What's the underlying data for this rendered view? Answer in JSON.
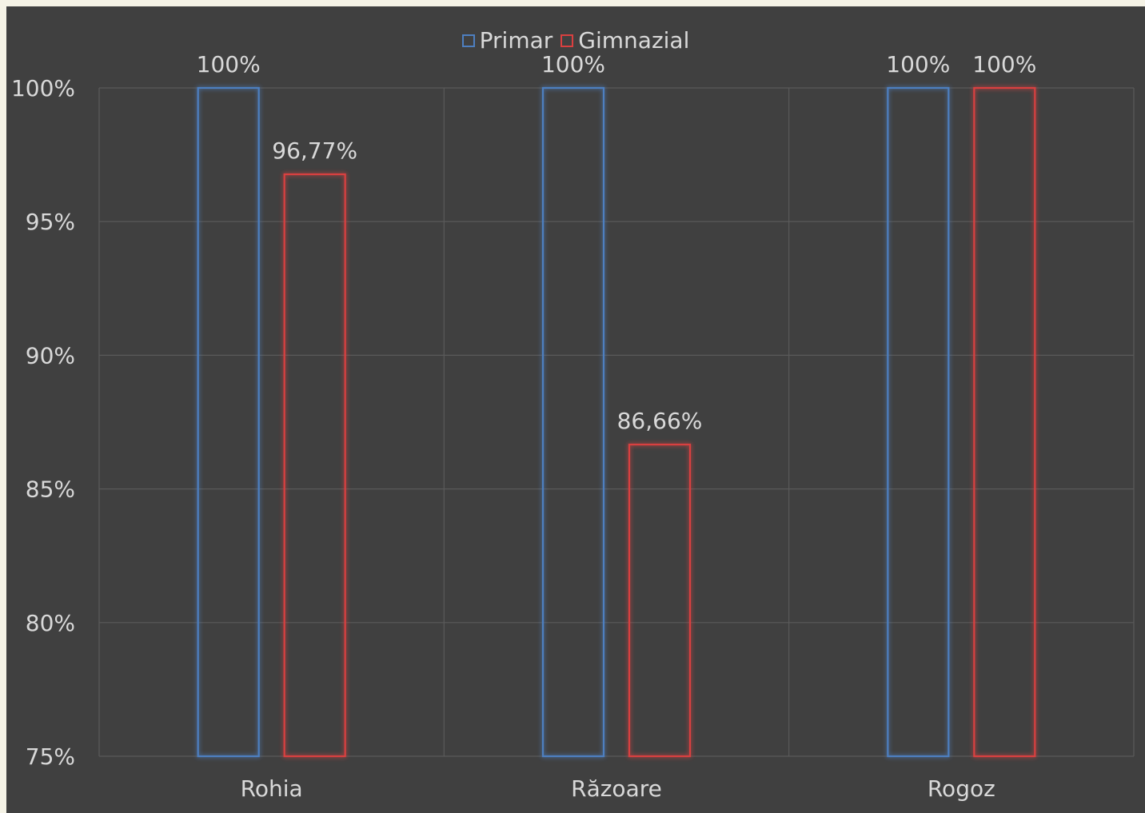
{
  "chart_data": {
    "type": "bar",
    "categories": [
      "Rohia",
      "Răzoare",
      "Rogoz"
    ],
    "series": [
      {
        "name": "Primar",
        "values": [
          100,
          100,
          100
        ],
        "labels": [
          "100%",
          "100%",
          "100%"
        ],
        "color": "#4e7fc0"
      },
      {
        "name": "Gimnazial",
        "values": [
          96.77,
          86.66,
          100
        ],
        "labels": [
          "96,77%",
          "86,66%",
          "100%"
        ],
        "color": "#d94040"
      }
    ],
    "y_ticks": [
      "75%",
      "80%",
      "85%",
      "90%",
      "95%",
      "100%"
    ],
    "ylim": [
      75,
      100
    ],
    "grid": true,
    "legend_position": "top",
    "background": "#404040",
    "bar_style": "outline"
  }
}
